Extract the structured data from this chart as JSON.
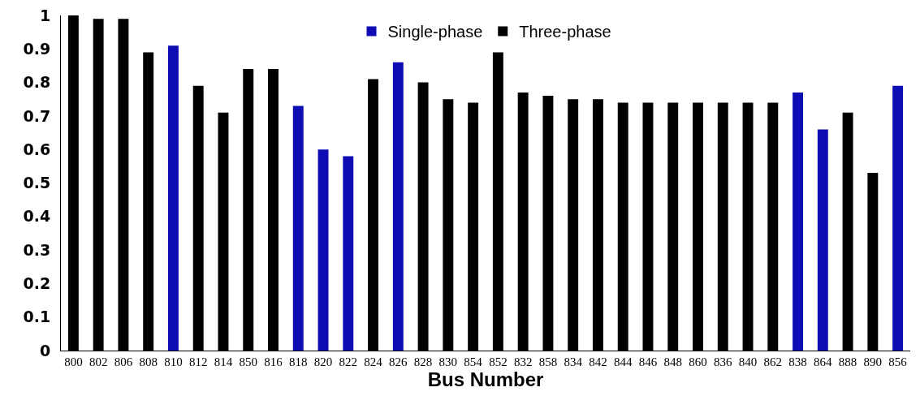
{
  "chart_data": {
    "type": "bar",
    "xlabel": "Bus Number",
    "categories": [
      "800",
      "802",
      "806",
      "808",
      "810",
      "812",
      "814",
      "850",
      "816",
      "818",
      "820",
      "822",
      "824",
      "826",
      "828",
      "830",
      "854",
      "852",
      "832",
      "858",
      "834",
      "842",
      "844",
      "846",
      "848",
      "860",
      "836",
      "840",
      "862",
      "838",
      "864",
      "888",
      "890",
      "856"
    ],
    "series": [
      {
        "name": "Single-phase",
        "color": "#0d0db3",
        "values": [
          null,
          null,
          null,
          null,
          0.91,
          null,
          null,
          null,
          null,
          0.73,
          0.6,
          0.58,
          null,
          0.86,
          null,
          null,
          null,
          null,
          null,
          null,
          null,
          null,
          null,
          null,
          null,
          null,
          null,
          null,
          null,
          0.77,
          0.66,
          null,
          null,
          0.79
        ]
      },
      {
        "name": "Three-phase",
        "color": "#000000",
        "values": [
          1.0,
          0.99,
          0.99,
          0.89,
          null,
          0.79,
          0.71,
          0.84,
          0.84,
          null,
          null,
          null,
          0.81,
          null,
          0.8,
          0.75,
          0.74,
          0.89,
          0.77,
          0.76,
          0.75,
          0.75,
          0.74,
          0.74,
          0.74,
          0.74,
          0.74,
          0.74,
          0.74,
          null,
          null,
          0.71,
          0.53,
          null
        ]
      }
    ],
    "ylim": [
      0,
      1
    ],
    "yticks": [
      0,
      0.1,
      0.2,
      0.3,
      0.4,
      0.5,
      0.6,
      0.7,
      0.8,
      0.9,
      1
    ],
    "grid": false,
    "legend": "top"
  }
}
